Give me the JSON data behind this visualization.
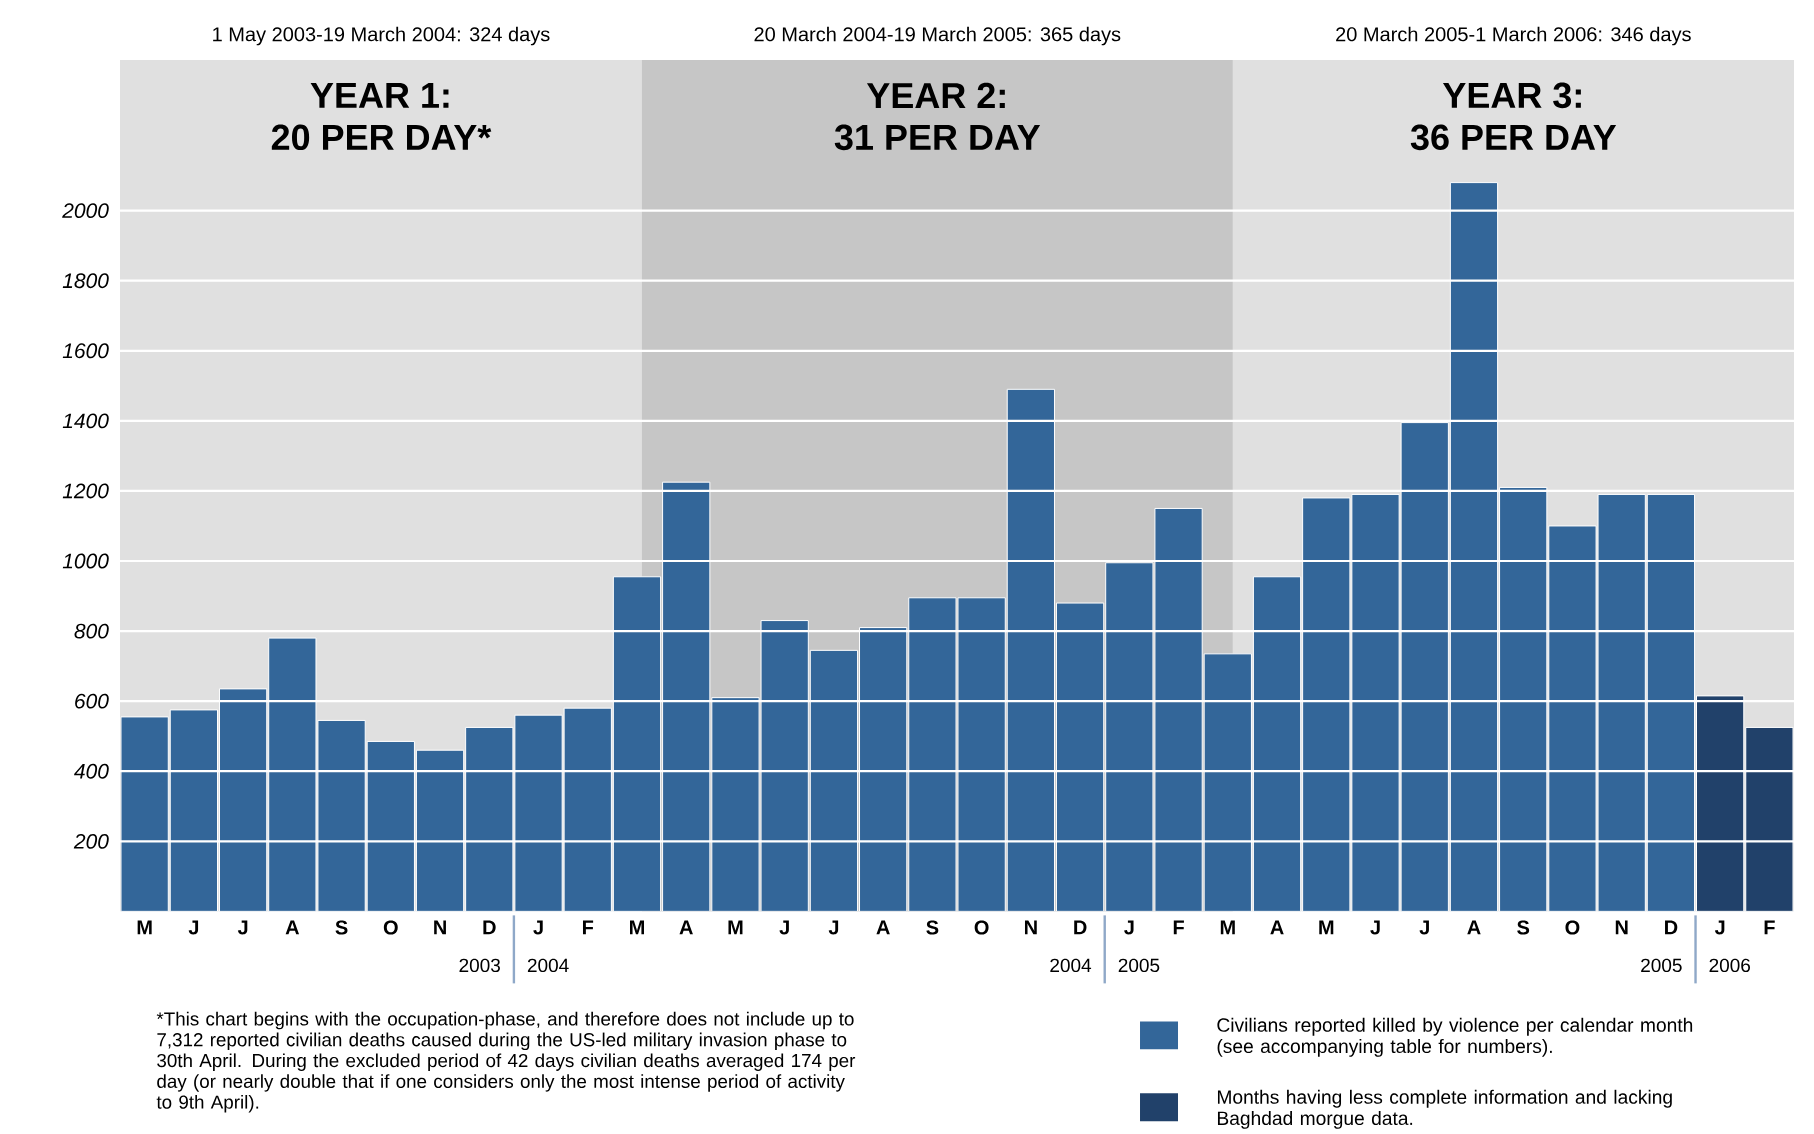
{
  "chart_data": {
    "type": "bar",
    "categories": [
      "M",
      "J",
      "J",
      "A",
      "S",
      "O",
      "N",
      "D",
      "J",
      "F",
      "M",
      "A",
      "M",
      "J",
      "J",
      "A",
      "S",
      "O",
      "N",
      "D",
      "J",
      "F",
      "M",
      "A",
      "M",
      "J",
      "J",
      "A",
      "S",
      "O",
      "N",
      "D",
      "J",
      "F"
    ],
    "series": [
      {
        "name": "Civilians reported killed by violence per calendar month (see accompanying table for numbers).",
        "color": "#336699",
        "values": [
          555,
          575,
          635,
          780,
          545,
          485,
          460,
          525,
          560,
          580,
          955,
          1225,
          610,
          830,
          745,
          810,
          895,
          895,
          1490,
          880,
          995,
          1150,
          735,
          955,
          1180,
          1190,
          1395,
          2080,
          1210,
          1100,
          1190,
          1190,
          null,
          null
        ]
      },
      {
        "name": "Months having less complete information and lacking Baghdad morgue data.",
        "color": "#21416a",
        "values": [
          null,
          null,
          null,
          null,
          null,
          null,
          null,
          null,
          null,
          null,
          null,
          null,
          null,
          null,
          null,
          null,
          null,
          null,
          null,
          null,
          null,
          null,
          null,
          null,
          null,
          null,
          null,
          null,
          null,
          null,
          null,
          null,
          615,
          525
        ]
      }
    ],
    "ylim": [
      0,
      2430
    ],
    "yticks": [
      200,
      400,
      600,
      800,
      1000,
      1200,
      1400,
      1600,
      1800,
      2000
    ],
    "grid": "y",
    "legend": "bottom right",
    "annotations": [
      "1 May 2003-19 March 2004: 324 days",
      "20 March 2004-19 March 2005: 365 days",
      "20 March 2005-1 March 2006: 346 days",
      "YEAR 1:",
      "YEAR 2:",
      "YEAR 3:",
      "20 PER DAY*",
      "31 PER DAY",
      "36 PER DAY",
      "2003",
      "2004",
      "2004",
      "2005",
      "2005",
      "2006",
      "*This chart begins with the occupation-phase, and therefore does not include up to 7,312 reported civilian deaths caused during the US-led military invasion phase to 30th April. During the excluded period of 42 days civilian deaths averaged 174 per day (or nearly double that if one considers only the most intense period of activity to 9th April)."
    ]
  }
}
